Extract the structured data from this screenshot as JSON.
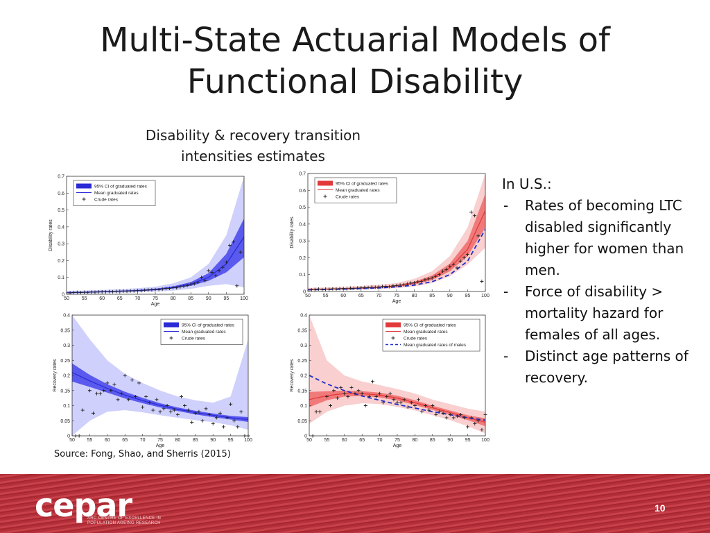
{
  "slide": {
    "title_line1": "Multi-State Actuarial Models of",
    "title_line2": "Functional Disability",
    "subtitle_line1": "Disability & recovery transition",
    "subtitle_line2": "intensities estimates",
    "source": "Source: Fong, Shao, and Sherris (2015)",
    "page_number": "10"
  },
  "notes": {
    "heading": "In U.S.:",
    "bullets": [
      {
        "dash": "-",
        "text": "Rates of becoming LTC disabled significantly higher for women than men."
      },
      {
        "dash": "-",
        "text": "Force of disability > mortality hazard for females of all ages."
      },
      {
        "dash": "-",
        "text": "Distinct age patterns of recovery."
      }
    ]
  },
  "footer": {
    "logo_text": "cepar",
    "logo_subline1": "ARC CENTRE OF EXCELLENCE IN",
    "logo_subline2": "POPULATION AGEING RESEARCH"
  },
  "colors": {
    "blue_main": "#2b2bd6",
    "blue_band": "#5a5aee",
    "blue_light": "#cfd0fb",
    "red_main": "#e23a3a",
    "red_band": "#f07a7a",
    "red_light": "#f9cfcf",
    "male_dash": "#1f2fc9",
    "footer_red": "#b3303a"
  },
  "chart_data": [
    {
      "type": "line",
      "xlabel": "Age",
      "ylabel": "Disability rates",
      "xlim": [
        50,
        100
      ],
      "ylim": [
        0,
        0.7
      ],
      "xticks": [
        50,
        55,
        60,
        65,
        70,
        75,
        80,
        85,
        90,
        95,
        100
      ],
      "yticks": [
        0,
        0.1,
        0.2,
        0.3,
        0.4,
        0.5,
        0.6,
        0.7
      ],
      "legend": [
        "95% CI of graduated rates",
        "Mean graduated rates",
        "Crude rates"
      ],
      "legend_position": "top-left",
      "palette": "blue",
      "mean": {
        "x": [
          50,
          55,
          60,
          65,
          70,
          75,
          80,
          85,
          90,
          95,
          100
        ],
        "y": [
          0.01,
          0.012,
          0.015,
          0.018,
          0.022,
          0.028,
          0.04,
          0.06,
          0.1,
          0.18,
          0.34
        ]
      },
      "ci_inner": {
        "x": [
          50,
          55,
          60,
          65,
          70,
          75,
          80,
          85,
          90,
          95,
          100
        ],
        "lower": [
          0.007,
          0.009,
          0.012,
          0.015,
          0.019,
          0.024,
          0.034,
          0.05,
          0.08,
          0.13,
          0.22
        ],
        "upper": [
          0.013,
          0.015,
          0.018,
          0.022,
          0.026,
          0.033,
          0.047,
          0.072,
          0.125,
          0.24,
          0.45
        ]
      },
      "ci_outer": {
        "x": [
          50,
          55,
          60,
          65,
          70,
          75,
          80,
          85,
          90,
          95,
          100
        ],
        "lower": [
          0.003,
          0.005,
          0.007,
          0.009,
          0.012,
          0.016,
          0.022,
          0.032,
          0.05,
          0.06,
          0.04
        ],
        "upper": [
          0.02,
          0.022,
          0.026,
          0.03,
          0.036,
          0.045,
          0.065,
          0.1,
          0.18,
          0.35,
          0.7
        ]
      },
      "crude": {
        "x": [
          51,
          52,
          53,
          54,
          55,
          56,
          57,
          58,
          59,
          60,
          61,
          62,
          63,
          64,
          65,
          66,
          67,
          68,
          69,
          70,
          71,
          72,
          73,
          74,
          75,
          76,
          77,
          78,
          79,
          80,
          81,
          82,
          83,
          84,
          85,
          86,
          87,
          88,
          89,
          90,
          91,
          92,
          93,
          94,
          95,
          96,
          97,
          98,
          99
        ],
        "y": [
          0.008,
          0.01,
          0.012,
          0.01,
          0.012,
          0.011,
          0.013,
          0.012,
          0.014,
          0.015,
          0.014,
          0.016,
          0.015,
          0.017,
          0.018,
          0.019,
          0.018,
          0.02,
          0.02,
          0.022,
          0.021,
          0.024,
          0.025,
          0.026,
          0.028,
          0.027,
          0.03,
          0.034,
          0.035,
          0.04,
          0.038,
          0.044,
          0.048,
          0.052,
          0.06,
          0.062,
          0.07,
          0.1,
          0.08,
          0.14,
          0.13,
          0.11,
          0.14,
          0.16,
          0.19,
          0.29,
          0.31,
          0.05,
          0.25
        ]
      }
    },
    {
      "type": "line",
      "xlabel": "Age",
      "ylabel": "Disability rates",
      "xlim": [
        50,
        100
      ],
      "ylim": [
        0,
        0.7
      ],
      "xticks": [
        50,
        55,
        60,
        65,
        70,
        75,
        80,
        85,
        90,
        95,
        100
      ],
      "yticks": [
        0,
        0.1,
        0.2,
        0.3,
        0.4,
        0.5,
        0.6,
        0.7
      ],
      "legend": [
        "95% CI of graduated rates",
        "Mean graduated rates",
        "Crude rates"
      ],
      "legend_position": "top-left",
      "palette": "red",
      "mean": {
        "x": [
          50,
          55,
          60,
          65,
          70,
          75,
          80,
          85,
          90,
          95,
          100
        ],
        "y": [
          0.012,
          0.014,
          0.017,
          0.02,
          0.025,
          0.033,
          0.05,
          0.08,
          0.14,
          0.25,
          0.48
        ]
      },
      "ci_inner": {
        "x": [
          50,
          55,
          60,
          65,
          70,
          75,
          80,
          85,
          90,
          95,
          100
        ],
        "lower": [
          0.009,
          0.011,
          0.014,
          0.017,
          0.021,
          0.028,
          0.042,
          0.068,
          0.12,
          0.21,
          0.38
        ],
        "upper": [
          0.015,
          0.017,
          0.02,
          0.024,
          0.029,
          0.038,
          0.058,
          0.095,
          0.165,
          0.3,
          0.58
        ]
      },
      "ci_outer": {
        "x": [
          50,
          55,
          60,
          65,
          70,
          75,
          80,
          85,
          90,
          95,
          100
        ],
        "lower": [
          0.005,
          0.007,
          0.009,
          0.012,
          0.015,
          0.02,
          0.03,
          0.05,
          0.09,
          0.16,
          0.26
        ],
        "upper": [
          0.022,
          0.024,
          0.028,
          0.033,
          0.04,
          0.05,
          0.075,
          0.12,
          0.21,
          0.38,
          0.7
        ]
      },
      "male": {
        "x": [
          50,
          55,
          60,
          65,
          70,
          75,
          80,
          85,
          90,
          95,
          100
        ],
        "y": [
          0.01,
          0.012,
          0.014,
          0.017,
          0.021,
          0.027,
          0.038,
          0.058,
          0.1,
          0.18,
          0.37
        ]
      },
      "crude": {
        "x": [
          51,
          52,
          53,
          54,
          55,
          56,
          57,
          58,
          59,
          60,
          61,
          62,
          63,
          64,
          65,
          66,
          67,
          68,
          69,
          70,
          71,
          72,
          73,
          74,
          75,
          76,
          77,
          78,
          79,
          80,
          81,
          82,
          83,
          84,
          85,
          86,
          87,
          88,
          89,
          90,
          91,
          92,
          93,
          94,
          95,
          96,
          97,
          98,
          99
        ],
        "y": [
          0.01,
          0.012,
          0.015,
          0.011,
          0.014,
          0.013,
          0.016,
          0.015,
          0.017,
          0.018,
          0.016,
          0.02,
          0.019,
          0.021,
          0.022,
          0.024,
          0.023,
          0.026,
          0.025,
          0.028,
          0.03,
          0.031,
          0.029,
          0.034,
          0.036,
          0.038,
          0.04,
          0.045,
          0.05,
          0.052,
          0.058,
          0.06,
          0.07,
          0.075,
          0.08,
          0.09,
          0.1,
          0.12,
          0.13,
          0.15,
          0.16,
          0.14,
          0.18,
          0.2,
          0.22,
          0.47,
          0.45,
          0.33,
          0.06
        ]
      }
    },
    {
      "type": "line",
      "xlabel": "Age",
      "ylabel": "Recovery rates",
      "xlim": [
        50,
        100
      ],
      "ylim": [
        0,
        0.4
      ],
      "xticks": [
        50,
        55,
        60,
        65,
        70,
        75,
        80,
        85,
        90,
        95,
        100
      ],
      "yticks": [
        0,
        0.05,
        0.1,
        0.15,
        0.2,
        0.25,
        0.3,
        0.35,
        0.4
      ],
      "legend": [
        "95% CI of graduated rates",
        "Mean graduated rates",
        "Crude rates"
      ],
      "legend_position": "top-right",
      "palette": "blue",
      "mean": {
        "x": [
          50,
          55,
          60,
          65,
          70,
          75,
          80,
          85,
          90,
          95,
          100
        ],
        "y": [
          0.21,
          0.182,
          0.157,
          0.135,
          0.117,
          0.101,
          0.088,
          0.077,
          0.068,
          0.06,
          0.054
        ]
      },
      "ci_inner": {
        "x": [
          50,
          55,
          60,
          65,
          70,
          75,
          80,
          85,
          90,
          95,
          100
        ],
        "lower": [
          0.18,
          0.162,
          0.143,
          0.124,
          0.108,
          0.094,
          0.082,
          0.071,
          0.062,
          0.054,
          0.046
        ],
        "upper": [
          0.24,
          0.202,
          0.171,
          0.146,
          0.126,
          0.108,
          0.094,
          0.083,
          0.074,
          0.066,
          0.062
        ]
      },
      "ci_outer": {
        "x": [
          50,
          55,
          60,
          65,
          70,
          75,
          80,
          85,
          90,
          95,
          100
        ],
        "lower": [
          0.0,
          0.05,
          0.08,
          0.085,
          0.078,
          0.068,
          0.06,
          0.052,
          0.045,
          0.035,
          0.02
        ],
        "upper": [
          0.4,
          0.32,
          0.25,
          0.205,
          0.175,
          0.15,
          0.13,
          0.118,
          0.11,
          0.13,
          0.32
        ]
      },
      "crude": {
        "x": [
          51,
          52,
          53,
          55,
          56,
          57,
          58,
          59,
          60,
          61,
          62,
          63,
          64,
          65,
          66,
          67,
          68,
          69,
          70,
          71,
          72,
          73,
          74,
          75,
          76,
          77,
          78,
          79,
          80,
          81,
          82,
          83,
          84,
          85,
          86,
          87,
          88,
          89,
          90,
          91,
          92,
          93,
          94,
          95,
          96,
          97,
          98,
          99,
          100
        ],
        "y": [
          0,
          0,
          0.085,
          0.15,
          0.075,
          0.14,
          0.14,
          0.15,
          0.175,
          0.15,
          0.17,
          0.12,
          0.14,
          0.2,
          0.12,
          0.185,
          0.13,
          0.175,
          0.095,
          0.13,
          0.11,
          0.085,
          0.12,
          0.08,
          0.09,
          0.1,
          0.08,
          0.085,
          0.07,
          0.13,
          0.1,
          0.085,
          0.045,
          0.075,
          0.08,
          0.05,
          0.09,
          0.07,
          0.04,
          0.06,
          0.075,
          0.03,
          0.06,
          0.105,
          0.05,
          0.03,
          0.08,
          0,
          0
        ]
      }
    },
    {
      "type": "line",
      "xlabel": "Age",
      "ylabel": "Recovery rates",
      "xlim": [
        50,
        100
      ],
      "ylim": [
        0,
        0.4
      ],
      "xticks": [
        50,
        55,
        60,
        65,
        70,
        75,
        80,
        85,
        90,
        95,
        100
      ],
      "yticks": [
        0,
        0.05,
        0.1,
        0.15,
        0.2,
        0.25,
        0.3,
        0.35,
        0.4
      ],
      "legend": [
        "95% CI of graduated rates",
        "Mean graduated rates",
        "Crude rates",
        "Mean graduated rates of males"
      ],
      "legend_position": "top-right",
      "palette": "red",
      "mean": {
        "x": [
          50,
          55,
          60,
          65,
          70,
          75,
          80,
          85,
          90,
          95,
          100
        ],
        "y": [
          0.12,
          0.133,
          0.14,
          0.14,
          0.135,
          0.125,
          0.11,
          0.093,
          0.077,
          0.06,
          0.045
        ]
      },
      "ci_inner": {
        "x": [
          50,
          55,
          60,
          65,
          70,
          75,
          80,
          85,
          90,
          95,
          100
        ],
        "lower": [
          0.095,
          0.118,
          0.13,
          0.132,
          0.127,
          0.117,
          0.102,
          0.086,
          0.07,
          0.052,
          0.032
        ],
        "upper": [
          0.145,
          0.148,
          0.15,
          0.148,
          0.143,
          0.133,
          0.118,
          0.1,
          0.084,
          0.068,
          0.058
        ]
      },
      "ci_outer": {
        "x": [
          50,
          55,
          60,
          65,
          70,
          75,
          80,
          85,
          90,
          95,
          100
        ],
        "lower": [
          0.04,
          0.08,
          0.1,
          0.108,
          0.105,
          0.096,
          0.084,
          0.068,
          0.052,
          0.032,
          0.008
        ],
        "upper": [
          0.4,
          0.25,
          0.2,
          0.18,
          0.168,
          0.155,
          0.14,
          0.12,
          0.105,
          0.09,
          0.08
        ]
      },
      "male": {
        "x": [
          50,
          55,
          60,
          65,
          70,
          75,
          80,
          85,
          90,
          95,
          100
        ],
        "y": [
          0.2,
          0.172,
          0.15,
          0.132,
          0.118,
          0.104,
          0.092,
          0.08,
          0.07,
          0.06,
          0.052
        ]
      },
      "crude": {
        "x": [
          51,
          52,
          53,
          55,
          56,
          57,
          58,
          59,
          60,
          61,
          62,
          63,
          64,
          65,
          66,
          67,
          68,
          69,
          70,
          71,
          72,
          73,
          74,
          75,
          76,
          77,
          78,
          79,
          80,
          81,
          82,
          83,
          84,
          85,
          86,
          87,
          88,
          89,
          90,
          91,
          92,
          93,
          94,
          95,
          96,
          97,
          98,
          99,
          100
        ],
        "y": [
          0,
          0.08,
          0.08,
          0.13,
          0.1,
          0.15,
          0.125,
          0.16,
          0.14,
          0.13,
          0.16,
          0.14,
          0.15,
          0.14,
          0.1,
          0.13,
          0.18,
          0.13,
          0.14,
          0.11,
          0.13,
          0.14,
          0.12,
          0.11,
          0.11,
          0.12,
          0.095,
          0.11,
          0.1,
          0.12,
          0.08,
          0.1,
          0.085,
          0.1,
          0.07,
          0.08,
          0.075,
          0.06,
          0.07,
          0.06,
          0.065,
          0.07,
          0.06,
          0.03,
          0.06,
          0.04,
          0.05,
          0.02,
          0.07
        ]
      }
    }
  ]
}
